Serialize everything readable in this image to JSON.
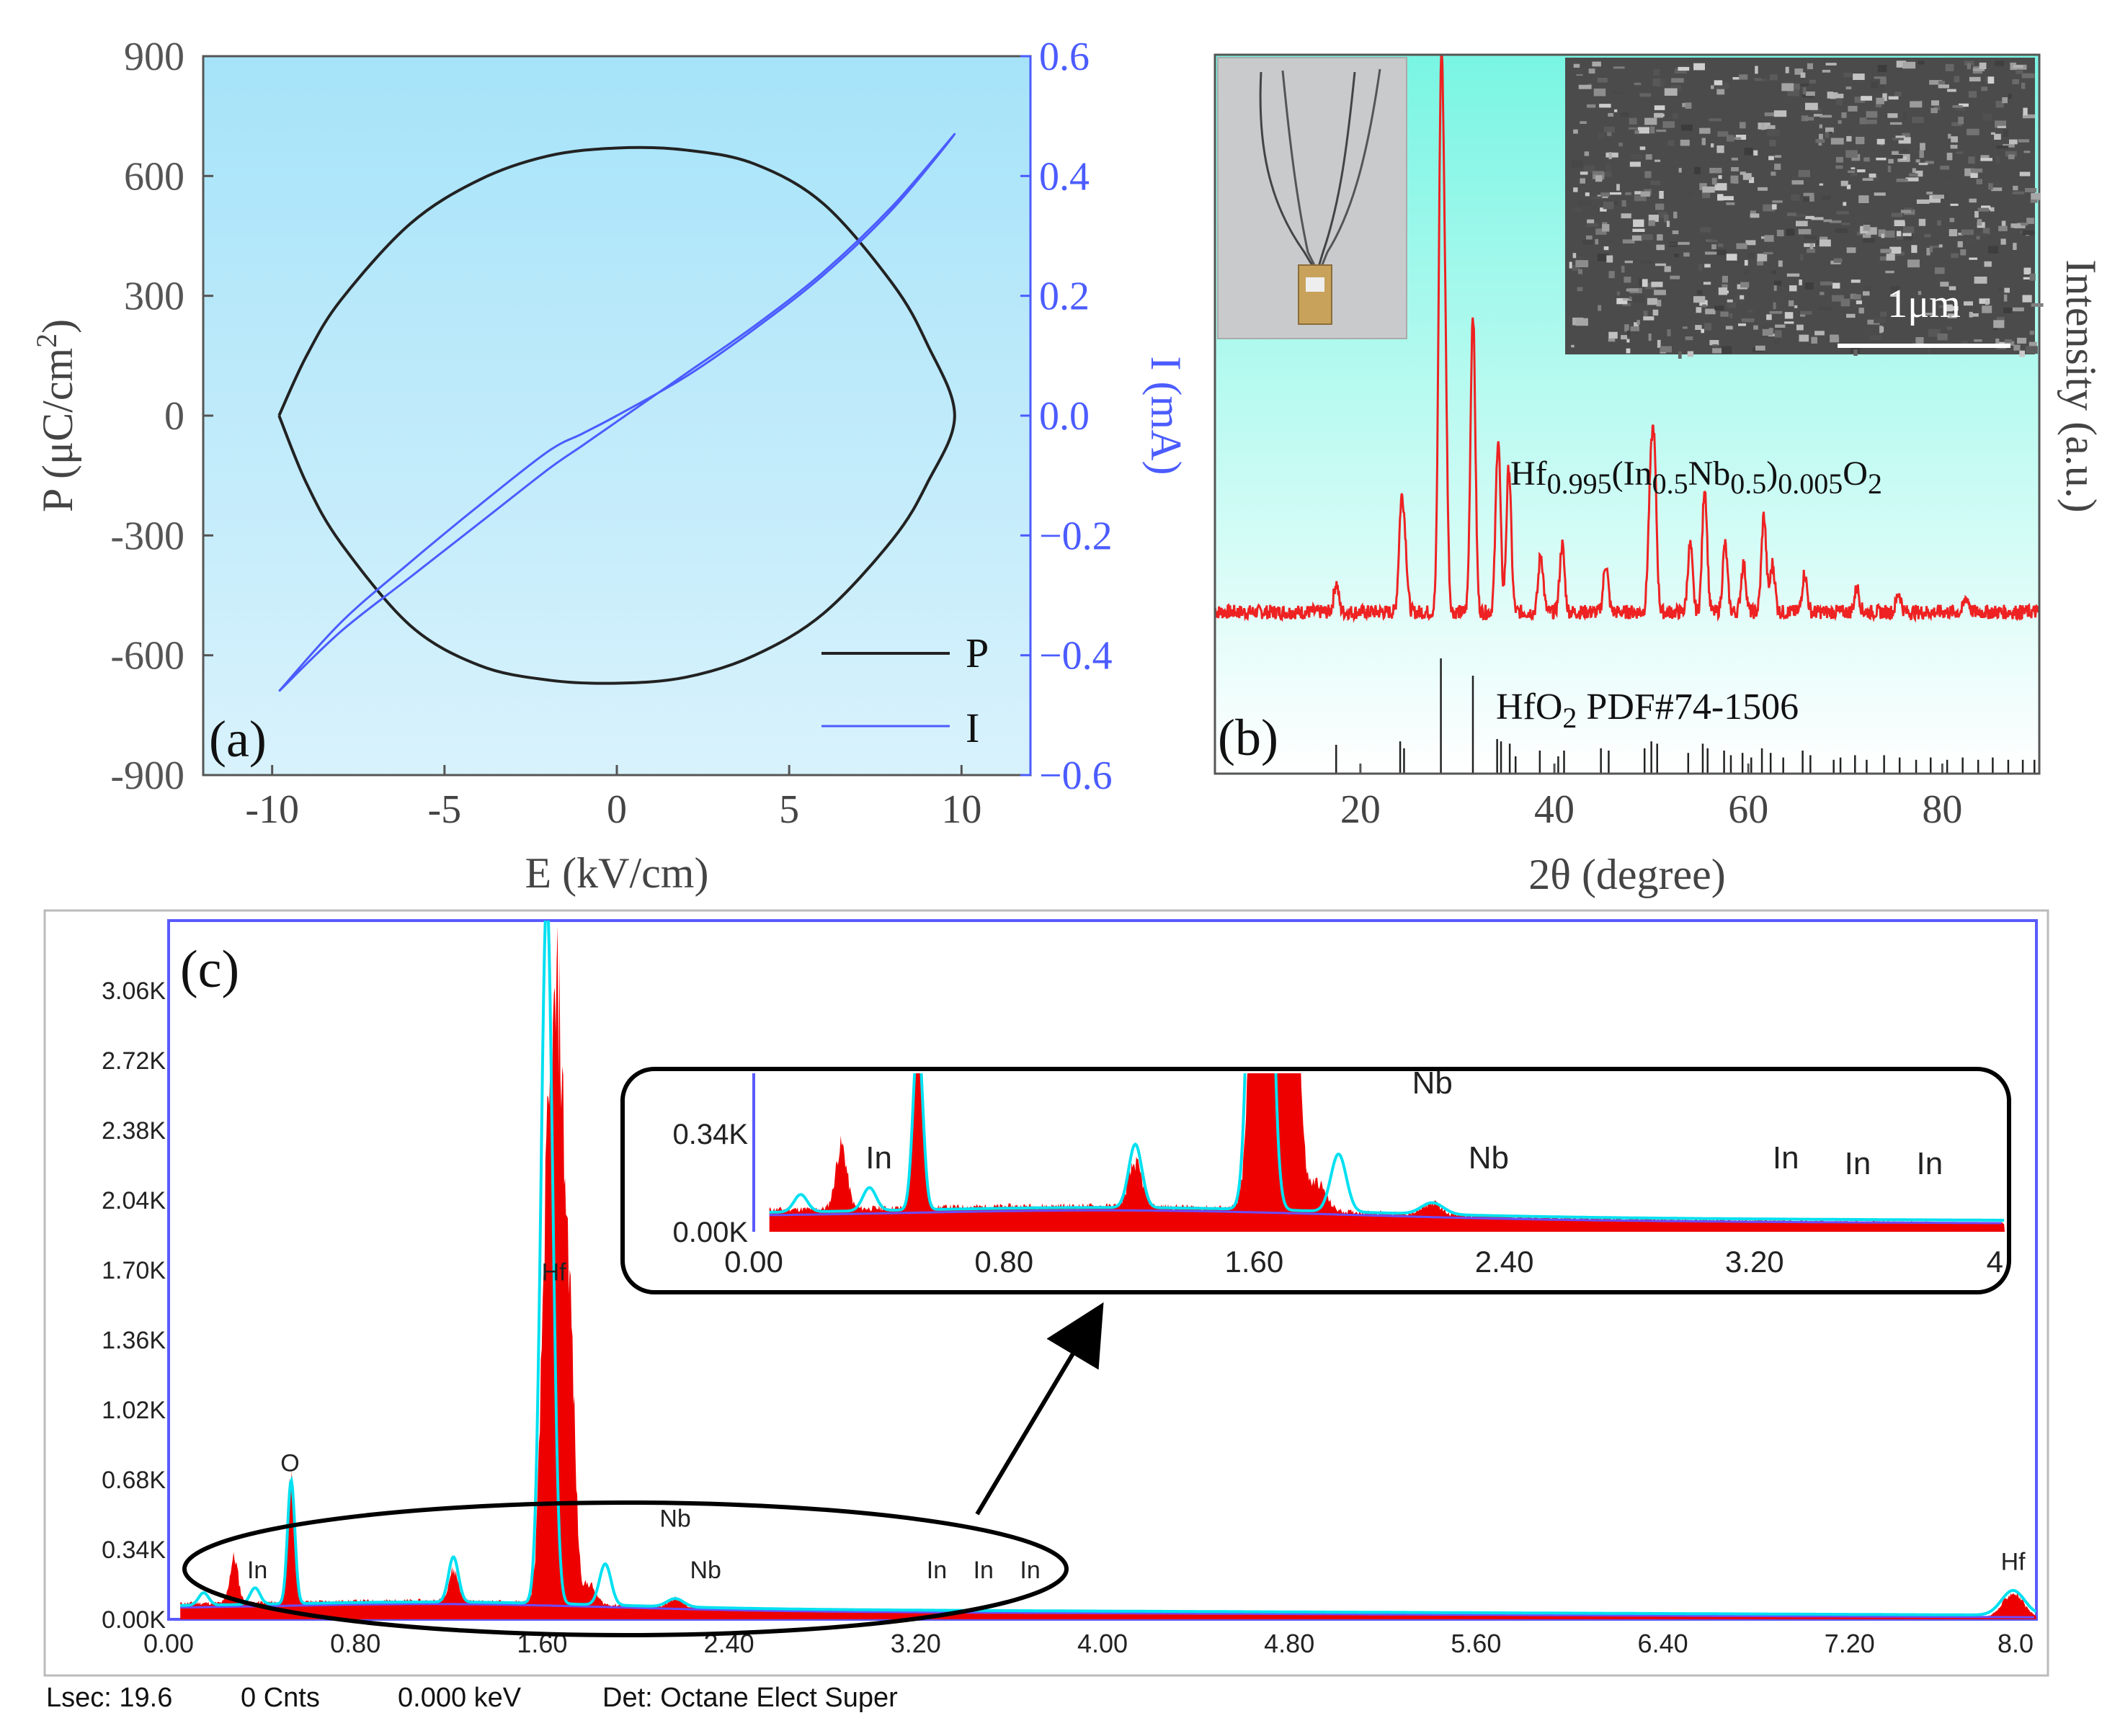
{
  "colors": {
    "p_loop": "#222222",
    "current": "#4b5cff",
    "xrd": "#ee2222",
    "eds_fill": "#ee0000",
    "eds_fit": "#00e0f0",
    "eds_bg": "#6a4cff",
    "eds_frame": "#5a5aff",
    "panel_a_bg_top": "#a6e3f9",
    "panel_a_bg_bottom": "#d8f2fc",
    "panel_b_bg_top": "#79f5e3",
    "panel_b_bg_bottom": "#ffffff"
  },
  "chart_data": [
    {
      "panel": "(a)",
      "type": "line",
      "xlabel": "E (kV/cm)",
      "ylabel_left": "P (μC/cm²)",
      "ylabel_left_base": "P (μC/cm",
      "ylabel_left_sup": "2",
      "ylabel_left_close": ")",
      "ylabel_right": "I (mA)",
      "xlim": [
        -12,
        12
      ],
      "ylim_left": [
        -900,
        900
      ],
      "ylim_right": [
        -0.6,
        0.6
      ],
      "xticks": [
        -10,
        -5,
        0,
        5,
        10
      ],
      "xtick_labels": [
        "-10",
        "-5",
        "0",
        "5",
        "10"
      ],
      "yticks_left": [
        900,
        600,
        300,
        0,
        -300,
        -600,
        -900
      ],
      "ytick_labels_left": [
        "900",
        "600",
        "300",
        "0",
        "-300",
        "-600",
        "-900"
      ],
      "yticks_right": [
        0.6,
        0.4,
        0.2,
        0.0,
        -0.2,
        -0.4,
        -0.6
      ],
      "ytick_labels_right": [
        "0.6",
        "0.4",
        "0.2",
        "0.0",
        "−0.2",
        "−0.4",
        "−0.6"
      ],
      "legend": [
        "P",
        "I"
      ],
      "legend_position": "bottom-right",
      "series": [
        {
          "name": "P",
          "axis": "left",
          "x": [
            -9.8,
            -9.0,
            -8.0,
            -6.0,
            -4.0,
            -2.0,
            0.0,
            2.0,
            4.0,
            6.0,
            8.0,
            9.0,
            9.8,
            9.0,
            8.0,
            6.0,
            4.0,
            2.0,
            0.0,
            -2.0,
            -4.0,
            -6.0,
            -8.0,
            -9.0,
            -9.8
          ],
          "y": [
            0,
            150,
            290,
            480,
            590,
            650,
            670,
            665,
            630,
            530,
            330,
            180,
            0,
            -170,
            -310,
            -495,
            -600,
            -655,
            -670,
            -662,
            -625,
            -525,
            -320,
            -170,
            0
          ]
        },
        {
          "name": "I",
          "axis": "right",
          "x": [
            -9.8,
            -8.0,
            -6.0,
            -4.0,
            -2.0,
            -1.0,
            0.0,
            2.0,
            4.0,
            6.0,
            8.0,
            9.8,
            8.0,
            6.0,
            4.0,
            2.0,
            0.0,
            -1.0,
            -2.0,
            -4.0,
            -6.0,
            -8.0,
            -9.8
          ],
          "y": [
            -0.46,
            -0.36,
            -0.27,
            -0.18,
            -0.09,
            -0.05,
            -0.01,
            0.07,
            0.15,
            0.24,
            0.35,
            0.47,
            0.345,
            0.235,
            0.145,
            0.065,
            0.0,
            -0.03,
            -0.06,
            -0.15,
            -0.245,
            -0.345,
            -0.46
          ]
        }
      ]
    },
    {
      "panel": "(b)",
      "type": "line",
      "xlabel": "2θ (degree)",
      "ylabel": "Intensity (a.u.)",
      "xlim": [
        5,
        90
      ],
      "xticks": [
        20,
        40,
        60,
        80
      ],
      "xtick_labels": [
        "20",
        "40",
        "60",
        "80"
      ],
      "yticks": [],
      "compound_label": "Hf0.995(In0.5Nb0.5)0.005O2",
      "compound_parts": {
        "a": "Hf",
        "b": "0.995",
        "c": "(In",
        "d": "0.5",
        "e": "Nb",
        "f": "0.5",
        "g": ")",
        "h": "0.005",
        "i": "O",
        "j": "2"
      },
      "reference_label": "HfO2 PDF#74-1506",
      "reference_parts": {
        "a": "HfO",
        "b": "2",
        "c": " PDF#74-1506"
      },
      "inset_scale_label": "1μm",
      "baseline": 0.12,
      "peaks": [
        {
          "x": 17.5,
          "h": 0.06
        },
        {
          "x": 24.2,
          "h": 0.2
        },
        {
          "x": 24.6,
          "h": 0.12
        },
        {
          "x": 28.3,
          "h": 1.0
        },
        {
          "x": 28.7,
          "h": 0.5
        },
        {
          "x": 31.6,
          "h": 0.62
        },
        {
          "x": 34.2,
          "h": 0.36
        },
        {
          "x": 35.3,
          "h": 0.3
        },
        {
          "x": 38.6,
          "h": 0.12
        },
        {
          "x": 40.8,
          "h": 0.14
        },
        {
          "x": 45.3,
          "h": 0.1
        },
        {
          "x": 49.9,
          "h": 0.22
        },
        {
          "x": 50.3,
          "h": 0.3
        },
        {
          "x": 54.0,
          "h": 0.14
        },
        {
          "x": 55.5,
          "h": 0.26
        },
        {
          "x": 57.6,
          "h": 0.14
        },
        {
          "x": 59.5,
          "h": 0.1
        },
        {
          "x": 61.6,
          "h": 0.2
        },
        {
          "x": 62.5,
          "h": 0.1
        },
        {
          "x": 65.8,
          "h": 0.08
        },
        {
          "x": 71.2,
          "h": 0.05
        },
        {
          "x": 75.5,
          "h": 0.04
        },
        {
          "x": 82.5,
          "h": 0.03
        }
      ],
      "reference_lines": [
        {
          "x": 17.5,
          "h": 0.25
        },
        {
          "x": 24.1,
          "h": 0.28
        },
        {
          "x": 24.5,
          "h": 0.22
        },
        {
          "x": 28.3,
          "h": 1.0
        },
        {
          "x": 31.6,
          "h": 0.85
        },
        {
          "x": 34.1,
          "h": 0.3
        },
        {
          "x": 34.5,
          "h": 0.28
        },
        {
          "x": 35.4,
          "h": 0.26
        },
        {
          "x": 36.0,
          "h": 0.15
        },
        {
          "x": 38.5,
          "h": 0.2
        },
        {
          "x": 40.4,
          "h": 0.15
        },
        {
          "x": 41.0,
          "h": 0.2
        },
        {
          "x": 44.8,
          "h": 0.22
        },
        {
          "x": 45.6,
          "h": 0.2
        },
        {
          "x": 49.3,
          "h": 0.22
        },
        {
          "x": 50.0,
          "h": 0.28
        },
        {
          "x": 50.6,
          "h": 0.26
        },
        {
          "x": 53.8,
          "h": 0.18
        },
        {
          "x": 55.3,
          "h": 0.26
        },
        {
          "x": 55.8,
          "h": 0.22
        },
        {
          "x": 57.5,
          "h": 0.2
        },
        {
          "x": 58.2,
          "h": 0.16
        },
        {
          "x": 59.4,
          "h": 0.18
        },
        {
          "x": 60.3,
          "h": 0.14
        },
        {
          "x": 61.4,
          "h": 0.22
        },
        {
          "x": 62.3,
          "h": 0.18
        },
        {
          "x": 63.6,
          "h": 0.14
        },
        {
          "x": 65.6,
          "h": 0.2
        },
        {
          "x": 66.4,
          "h": 0.16
        },
        {
          "x": 68.8,
          "h": 0.12
        },
        {
          "x": 69.5,
          "h": 0.14
        },
        {
          "x": 71.0,
          "h": 0.16
        },
        {
          "x": 72.2,
          "h": 0.12
        },
        {
          "x": 74.0,
          "h": 0.16
        },
        {
          "x": 75.6,
          "h": 0.14
        },
        {
          "x": 77.3,
          "h": 0.12
        },
        {
          "x": 78.8,
          "h": 0.14
        },
        {
          "x": 80.5,
          "h": 0.12
        },
        {
          "x": 82.1,
          "h": 0.14
        },
        {
          "x": 83.7,
          "h": 0.12
        },
        {
          "x": 85.2,
          "h": 0.14
        },
        {
          "x": 86.8,
          "h": 0.12
        },
        {
          "x": 88.3,
          "h": 0.12
        },
        {
          "x": 89.5,
          "h": 0.12
        }
      ]
    },
    {
      "panel": "(c)",
      "type": "area",
      "xlim": [
        0,
        8
      ],
      "ylim": [
        0,
        3.4
      ],
      "x_unit": "keV",
      "y_unit": "K counts",
      "xticks": [
        0,
        0.8,
        1.6,
        2.4,
        3.2,
        4.0,
        4.8,
        5.6,
        6.4,
        7.2,
        8.0
      ],
      "xtick_labels": [
        "0.00",
        "0.80",
        "1.60",
        "2.40",
        "3.20",
        "4.00",
        "4.80",
        "5.60",
        "6.40",
        "7.20",
        "8.0"
      ],
      "yticks": [
        0,
        0.34,
        0.68,
        1.02,
        1.36,
        1.7,
        2.04,
        2.38,
        2.72,
        3.06
      ],
      "ytick_labels": [
        "0.00K",
        "0.34K",
        "0.68K",
        "1.02K",
        "1.36K",
        "1.70K",
        "2.04K",
        "2.38K",
        "2.72K",
        "3.06K"
      ],
      "peak_labels": [
        {
          "text": "O",
          "x": 0.52,
          "y": 0.72
        },
        {
          "text": "Hf",
          "x": 1.65,
          "y": 1.65
        },
        {
          "text": "Nb",
          "x": 2.17,
          "y": 0.45
        },
        {
          "text": "Nb",
          "x": 2.3,
          "y": 0.2
        },
        {
          "text": "In",
          "x": 0.38,
          "y": 0.2
        },
        {
          "text": "In",
          "x": 3.29,
          "y": 0.2
        },
        {
          "text": "In",
          "x": 3.49,
          "y": 0.2
        },
        {
          "text": "In",
          "x": 3.69,
          "y": 0.2
        },
        {
          "text": "Hf",
          "x": 7.9,
          "y": 0.24
        }
      ],
      "measured_peaks": [
        {
          "x": 0.28,
          "h": 0.22,
          "w": 0.025
        },
        {
          "x": 0.525,
          "h": 0.6,
          "w": 0.02
        },
        {
          "x": 1.22,
          "h": 0.15,
          "w": 0.03
        },
        {
          "x": 1.62,
          "h": 1.8,
          "w": 0.035
        },
        {
          "x": 1.67,
          "h": 2.6,
          "w": 0.035
        },
        {
          "x": 1.72,
          "h": 1.2,
          "w": 0.03
        },
        {
          "x": 1.8,
          "h": 0.1,
          "w": 0.04
        },
        {
          "x": 2.17,
          "h": 0.04,
          "w": 0.04
        },
        {
          "x": 7.9,
          "h": 0.12,
          "w": 0.06
        }
      ],
      "fit_peaks": [
        {
          "x": 0.15,
          "h": 0.06,
          "w": 0.03
        },
        {
          "x": 0.37,
          "h": 0.08,
          "w": 0.03
        },
        {
          "x": 0.525,
          "h": 0.6,
          "w": 0.022
        },
        {
          "x": 1.22,
          "h": 0.22,
          "w": 0.03
        },
        {
          "x": 1.62,
          "h": 3.45,
          "w": 0.035
        },
        {
          "x": 1.87,
          "h": 0.2,
          "w": 0.035
        },
        {
          "x": 2.17,
          "h": 0.04,
          "w": 0.05
        },
        {
          "x": 7.9,
          "h": 0.12,
          "w": 0.07
        }
      ],
      "inset": {
        "xlim": [
          0,
          4
        ],
        "ylim": [
          0,
          0.55
        ],
        "xticks": [
          0,
          0.8,
          1.6,
          2.4,
          3.2,
          4.0
        ],
        "xtick_labels": [
          "0.00",
          "0.80",
          "1.60",
          "2.40",
          "3.20",
          "4"
        ],
        "yticks": [
          0,
          0.34
        ],
        "ytick_labels": [
          "0.00K",
          "0.34K"
        ],
        "peak_labels": [
          {
            "text": "In",
            "x": 0.4,
            "y": 0.22
          },
          {
            "text": "Nb",
            "x": 2.17,
            "y": 0.48
          },
          {
            "text": "Nb",
            "x": 2.35,
            "y": 0.22
          },
          {
            "text": "In",
            "x": 3.3,
            "y": 0.22
          },
          {
            "text": "In",
            "x": 3.53,
            "y": 0.2
          },
          {
            "text": "In",
            "x": 3.76,
            "y": 0.2
          }
        ]
      }
    }
  ],
  "status_bar": {
    "lsec": "Lsec: 19.6",
    "cnts": "0 Cnts",
    "kev": "0.000 keV",
    "det": "Det: Octane Elect Super"
  }
}
